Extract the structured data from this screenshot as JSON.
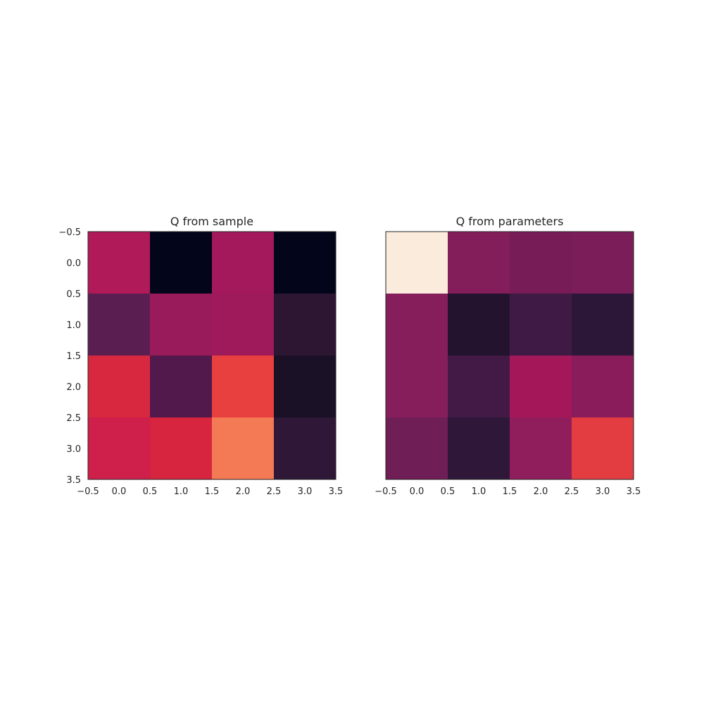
{
  "chart_data": [
    {
      "type": "heatmap",
      "title": "Q from sample",
      "colormap": "rocket",
      "x_ticks": [
        "−0.5",
        "0.0",
        "0.5",
        "1.0",
        "1.5",
        "2.0",
        "2.5",
        "3.0",
        "3.5"
      ],
      "y_ticks": [
        "−0.5",
        "0.0",
        "0.5",
        "1.0",
        "1.5",
        "2.0",
        "2.5",
        "3.0",
        "3.5"
      ],
      "show_y_ticks": true,
      "xlim": [
        -0.5,
        3.5
      ],
      "ylim": [
        3.5,
        -0.5
      ],
      "cells": [
        [
          "#b11a59",
          "#03051a",
          "#a3195b",
          "#03051a"
        ],
        [
          "#5b1e51",
          "#9a1b5c",
          "#9f1a5b",
          "#2c1631"
        ],
        [
          "#d7283f",
          "#52194c",
          "#e8403f",
          "#1a1127"
        ],
        [
          "#cf1f4b",
          "#d7243f",
          "#f47a55",
          "#2f1738"
        ]
      ]
    },
    {
      "type": "heatmap",
      "title": "Q from parameters",
      "colormap": "rocket",
      "x_ticks": [
        "−0.5",
        "0.0",
        "0.5",
        "1.0",
        "1.5",
        "2.0",
        "2.5",
        "3.0",
        "3.5"
      ],
      "y_ticks": [],
      "show_y_ticks": false,
      "xlim": [
        -0.5,
        3.5
      ],
      "ylim": [
        3.5,
        -0.5
      ],
      "cells": [
        [
          "#faebdd",
          "#841e5a",
          "#781c57",
          "#7a1d58"
        ],
        [
          "#861e5b",
          "#23132e",
          "#3f1a44",
          "#2d1739"
        ],
        [
          "#861e5b",
          "#421a45",
          "#a4185a",
          "#8b1c5b"
        ],
        [
          "#6f1e56",
          "#2f1739",
          "#901d5c",
          "#e33c41"
        ]
      ]
    }
  ]
}
